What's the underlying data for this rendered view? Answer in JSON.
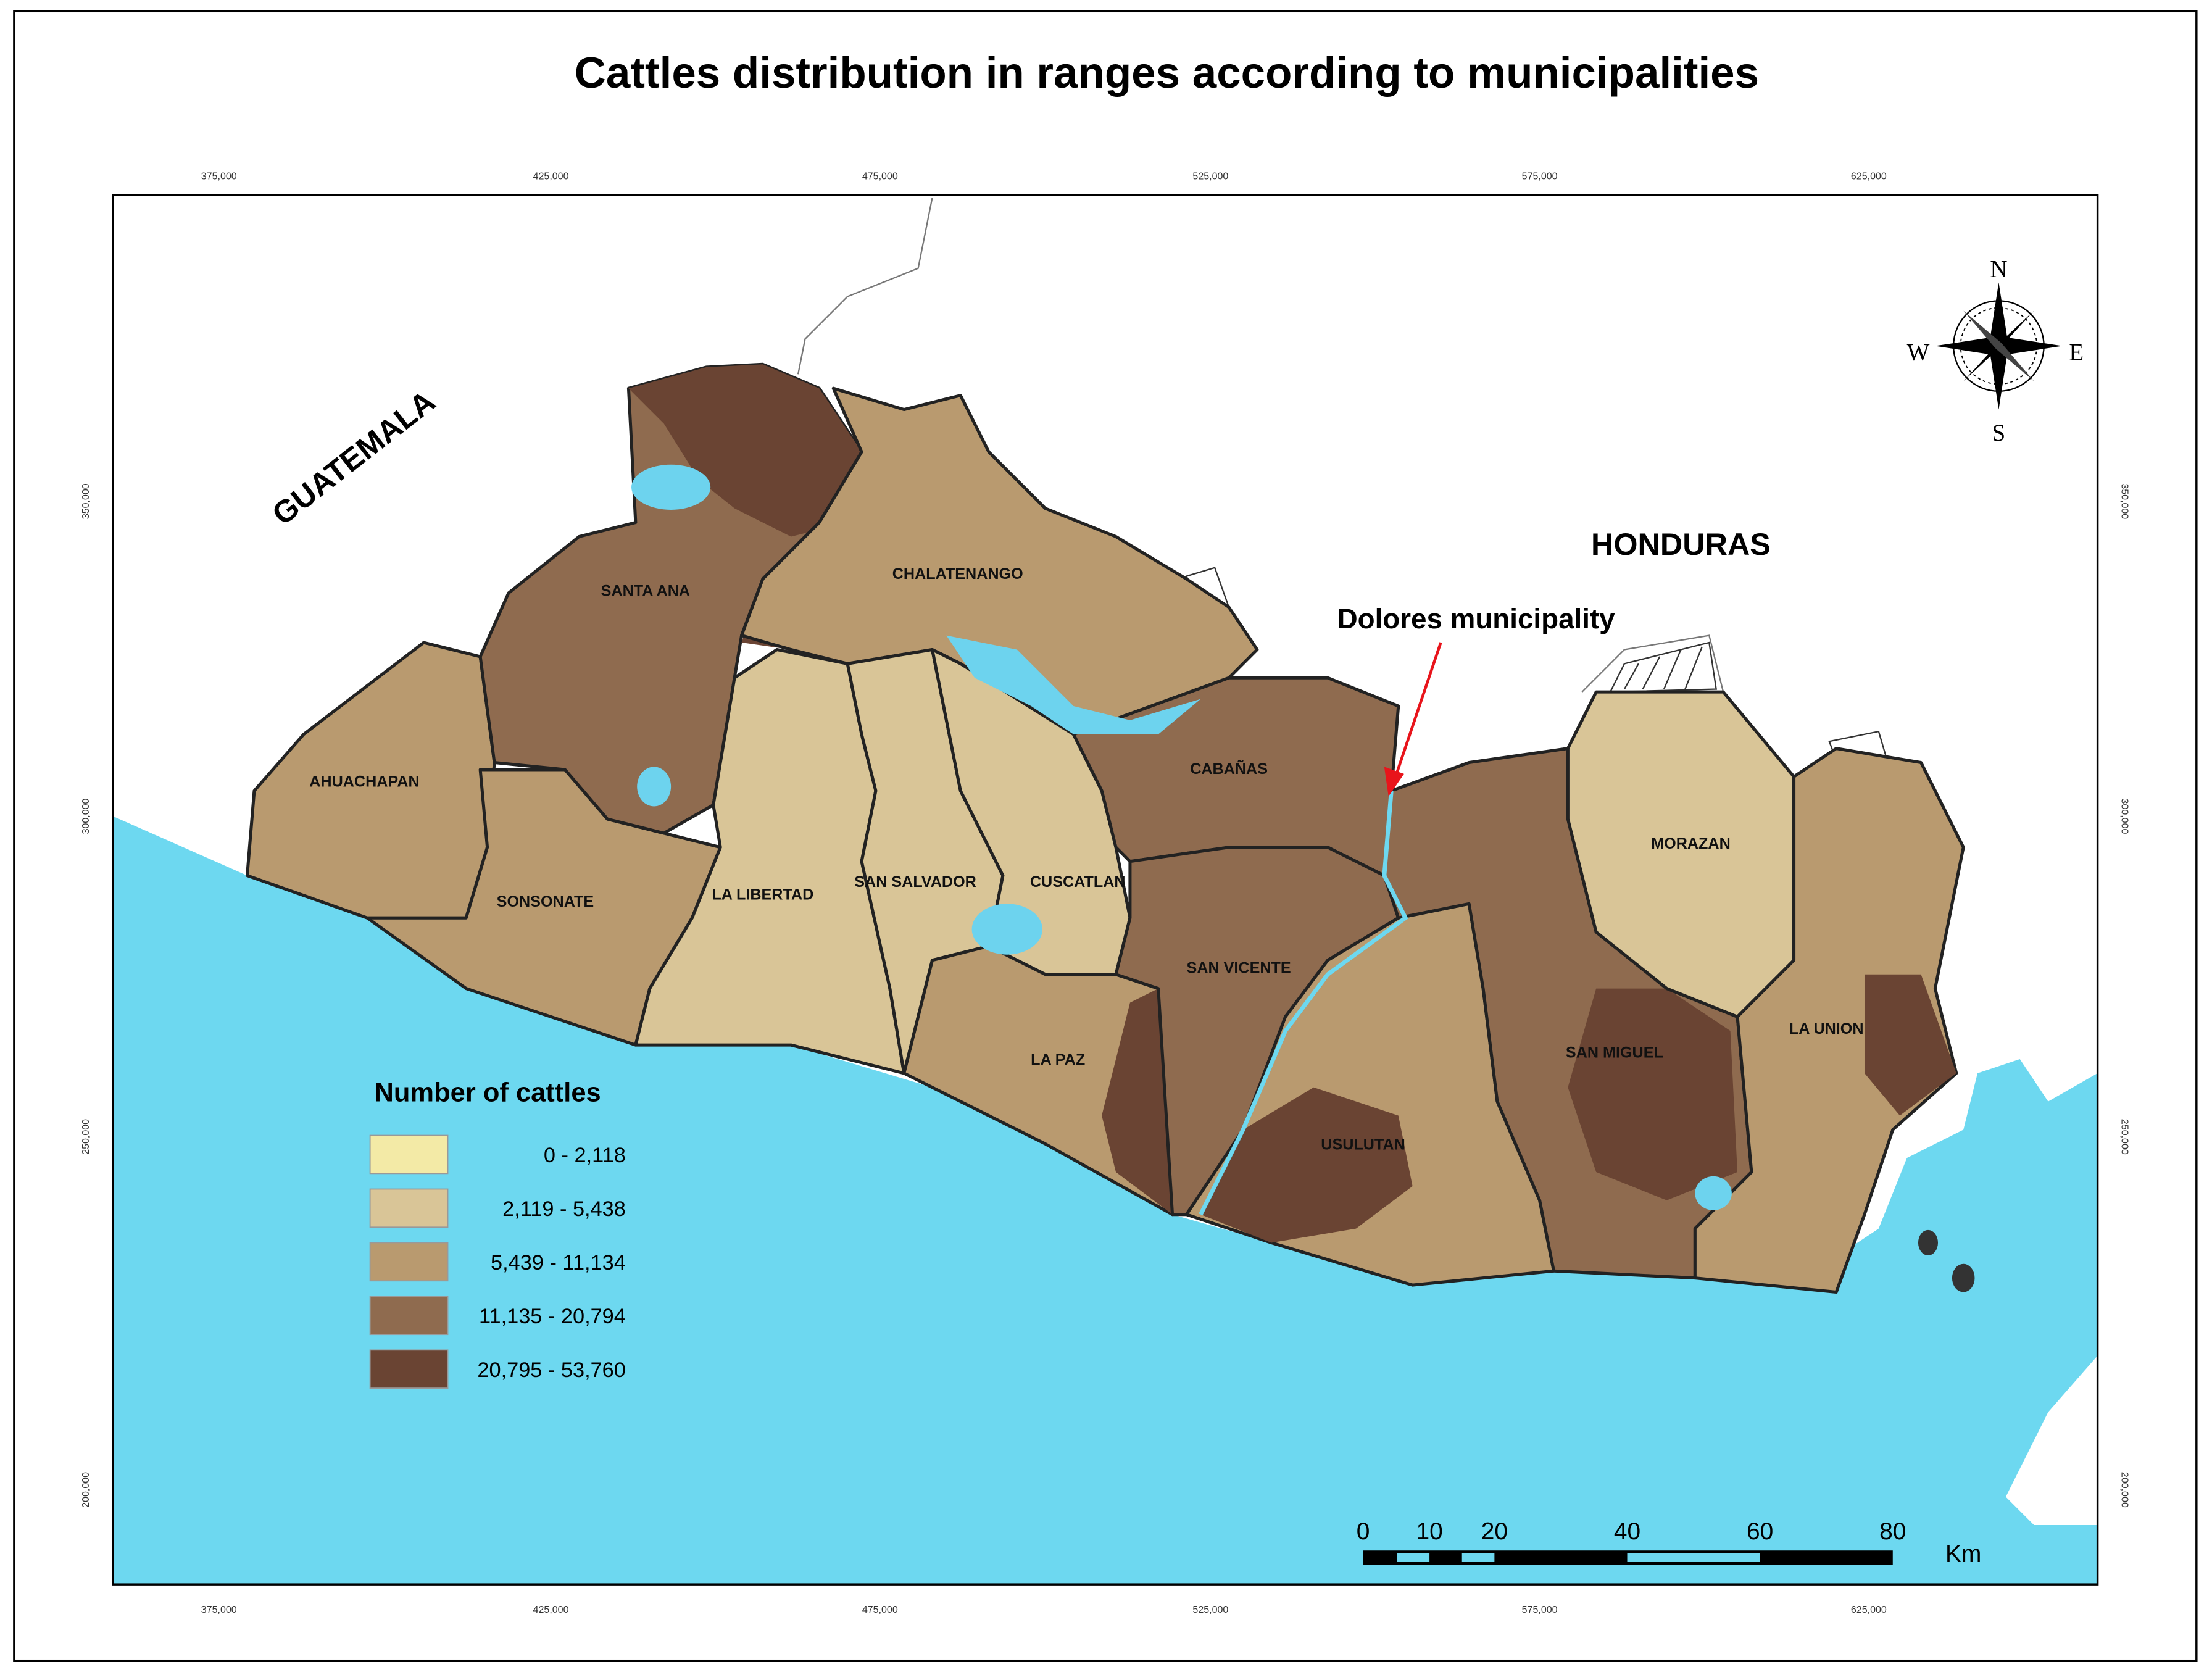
{
  "title": "Cattles distribution in ranges according to municipalities",
  "grid_labels": {
    "x_top": [
      "375,000",
      "425,000",
      "475,000",
      "525,000",
      "575,000",
      "625,000"
    ],
    "x_bottom": [
      "375,000",
      "425,000",
      "475,000",
      "525,000",
      "575,000",
      "625,000"
    ],
    "y_left": [
      "350,000",
      "300,000",
      "250,000",
      "200,000"
    ],
    "y_right": [
      "350,000",
      "300,000",
      "250,000",
      "200,000"
    ]
  },
  "countries": [
    "GUATEMALA",
    "HONDURAS"
  ],
  "departments": [
    "SANTA ANA",
    "CHALATENANGO",
    "AHUACHAPAN",
    "CABAÑAS",
    "SONSONATE",
    "LA LIBERTAD",
    "SAN SALVADOR",
    "CUSCATLAN",
    "MORAZAN",
    "SAN VICENTE",
    "LA PAZ",
    "LA UNION",
    "SAN MIGUEL",
    "USULUTAN"
  ],
  "annotation": "Dolores municipality",
  "legend": {
    "title": "Number of cattles",
    "items": [
      {
        "label": "0 -  2,118",
        "color": "#f3eaa6"
      },
      {
        "label": "2,119 -  5,438",
        "color": "#d9c597"
      },
      {
        "label": "5,439 - 11,134",
        "color": "#b99a6f"
      },
      {
        "label": "11,135 - 20,794",
        "color": "#8f6b4f"
      },
      {
        "label": "20,795 - 53,760",
        "color": "#6a4433"
      }
    ]
  },
  "compass": {
    "n": "N",
    "s": "S",
    "e": "E",
    "w": "W"
  },
  "scale_bar": {
    "labels": [
      "0",
      "10",
      "20",
      "40",
      "60",
      "80"
    ],
    "unit": "Km"
  }
}
